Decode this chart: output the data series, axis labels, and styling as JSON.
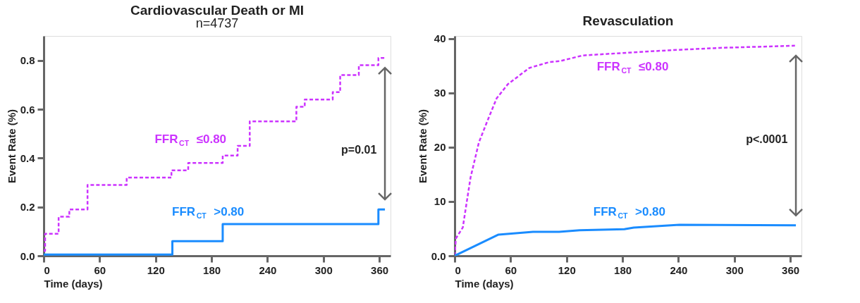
{
  "chart_data": [
    {
      "type": "step",
      "title": "Cardiovascular Death or MI",
      "subtitle": "n=4737",
      "xlabel": "Time (days)",
      "ylabel": "Event Rate (%)",
      "xlim": [
        0,
        372
      ],
      "xticks": [
        0,
        60,
        120,
        180,
        240,
        300,
        360
      ],
      "ylim": [
        0,
        0.9
      ],
      "yticks": [
        {
          "value": 0,
          "label": "0.0"
        },
        0.2,
        0.4,
        0.6,
        0.8
      ],
      "grid": false,
      "legend": false,
      "annotations": [
        "p=0.01"
      ],
      "series": [
        {
          "name": "FFR$_{CT}$ ≤0.80",
          "color": "#cc33ff",
          "line_style": "dashed",
          "x": [
            0,
            1.5,
            16,
            27.5,
            47,
            89,
            137,
            155,
            192,
            208,
            221,
            271,
            280,
            310,
            318,
            338,
            359,
            366
          ],
          "values": [
            0.02,
            0.09,
            0.16,
            0.19,
            0.29,
            0.32,
            0.35,
            0.38,
            0.41,
            0.45,
            0.55,
            0.61,
            0.64,
            0.67,
            0.74,
            0.78,
            0.81,
            0.81
          ]
        },
        {
          "name": "FFR$_{CT}$ >0.80",
          "color": "#1a8cff",
          "line_style": "solid",
          "x": [
            0,
            138,
            192,
            359,
            366
          ],
          "values": [
            0.005,
            0.06,
            0.13,
            0.19,
            0.19
          ]
        }
      ]
    },
    {
      "type": "line",
      "title": "Revasculation",
      "xlabel": "Time (days)",
      "ylabel": "Event Rate (%)",
      "xlim": [
        0,
        372
      ],
      "xticks": [
        0,
        60,
        120,
        180,
        240,
        300,
        360
      ],
      "ylim": [
        0,
        40.5
      ],
      "yticks": [
        {
          "value": 0,
          "label": "0.0"
        },
        10,
        20,
        30,
        40
      ],
      "grid": false,
      "legend": false,
      "annotations": [
        "p<.0001"
      ],
      "series": [
        {
          "name": "FFR$_{CT}$ ≤0.80",
          "color": "#cc33ff",
          "line_style": "dashed",
          "x": [
            0,
            1.3,
            8.7,
            17,
            26,
            35,
            45,
            57,
            80,
            102,
            114,
            137,
            184,
            234,
            284,
            365
          ],
          "values": [
            0,
            3.2,
            5.2,
            14.4,
            20.9,
            24.8,
            29.0,
            31.6,
            34.6,
            35.7,
            35.9,
            36.9,
            37.4,
            37.9,
            38.3,
            38.7
          ]
        },
        {
          "name": "FFR$_{CT}$ >0.80",
          "color": "#1a8cff",
          "line_style": "solid",
          "x": [
            0,
            47,
            84,
            112,
            134,
            182,
            192,
            241,
            366
          ],
          "values": [
            0,
            3.9,
            4.4,
            4.4,
            4.7,
            4.9,
            5.2,
            5.7,
            5.6
          ]
        }
      ]
    }
  ]
}
